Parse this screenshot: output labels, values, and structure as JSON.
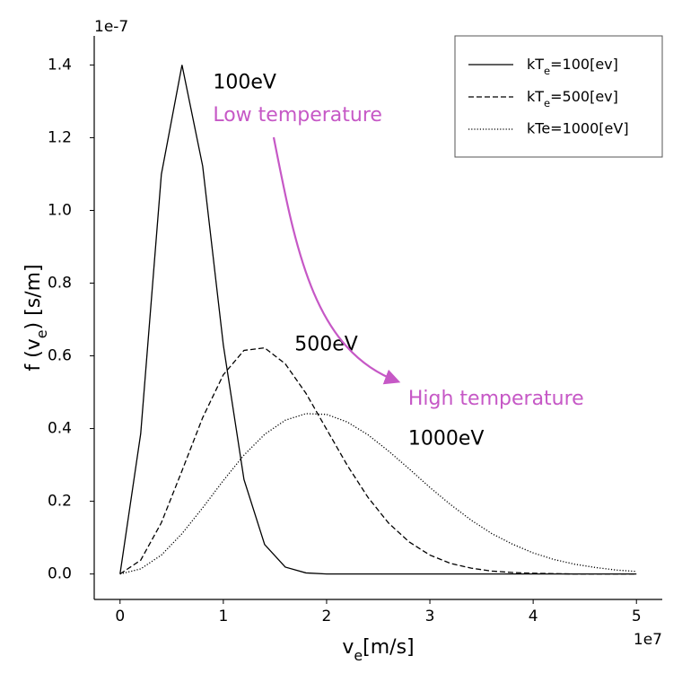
{
  "chart_data": {
    "type": "line",
    "y_label": [
      "f (v",
      "e",
      ") [s/m]"
    ],
    "x_label": [
      "v",
      "e",
      "[m/s]"
    ],
    "y_offset": "1e-7",
    "x_offset": "1e7",
    "x": [
      0,
      0.2,
      0.4,
      0.6,
      0.8,
      1.0,
      1.2,
      1.4,
      1.6,
      1.8,
      2.0,
      2.2,
      2.4,
      2.6,
      2.8,
      3.0,
      3.2,
      3.4,
      3.6,
      3.8,
      4.0,
      4.2,
      4.4,
      4.6,
      4.8,
      5.0
    ],
    "series": [
      {
        "name": [
          "kT",
          "e",
          "=100[ev]"
        ],
        "color": "#000000",
        "dash": "solid",
        "values": [
          0,
          0.386,
          1.099,
          1.4,
          1.122,
          0.63,
          0.26,
          0.081,
          0.019,
          0.003,
          0,
          0,
          0,
          0,
          0,
          0,
          0,
          0,
          0,
          0,
          0,
          0,
          0,
          0,
          0,
          0
        ]
      },
      {
        "name": [
          "kT",
          "e",
          "=500[ev]"
        ],
        "color": "#000000",
        "dash": "dashed",
        "values": [
          0,
          0.038,
          0.141,
          0.284,
          0.43,
          0.548,
          0.615,
          0.622,
          0.578,
          0.497,
          0.398,
          0.299,
          0.211,
          0.14,
          0.088,
          0.052,
          0.029,
          0.016,
          0.008,
          0.004,
          0.002,
          0.001,
          0,
          0,
          0,
          0
        ]
      },
      {
        "name": "kTe=1000[eV]",
        "color": "#000000",
        "dash": "dotted",
        "values": [
          0,
          0.014,
          0.052,
          0.111,
          0.182,
          0.257,
          0.327,
          0.384,
          0.423,
          0.441,
          0.439,
          0.418,
          0.383,
          0.338,
          0.289,
          0.238,
          0.191,
          0.148,
          0.111,
          0.082,
          0.058,
          0.04,
          0.027,
          0.018,
          0.011,
          0.007
        ]
      }
    ],
    "xlim": [
      -0.25,
      5.25
    ],
    "ylim": [
      -0.07,
      1.48
    ],
    "xticks": [
      0,
      1,
      2,
      3,
      4,
      5
    ],
    "yticks": [
      {
        "value": 0,
        "label": "0.0"
      },
      0.2,
      0.4,
      0.6,
      0.8,
      {
        "value": 1.0,
        "label": "1.0"
      },
      1.2,
      1.4
    ],
    "legend": "upper right",
    "annotations": [
      {
        "text": "100eV",
        "x": 0.9,
        "y": 1.35,
        "color": "#000000"
      },
      {
        "text": "Low temperature",
        "x": 0.9,
        "y": 1.26,
        "color": "#c658c6"
      },
      {
        "text": "500eV",
        "x": 1.69,
        "y": 0.63,
        "color": "#000000"
      },
      {
        "text": "High temperature",
        "x": 2.79,
        "y": 0.48,
        "color": "#c658c6"
      },
      {
        "text": "1000eV",
        "x": 2.79,
        "y": 0.37,
        "color": "#000000"
      }
    ],
    "arrow_color": "#c658c6"
  }
}
